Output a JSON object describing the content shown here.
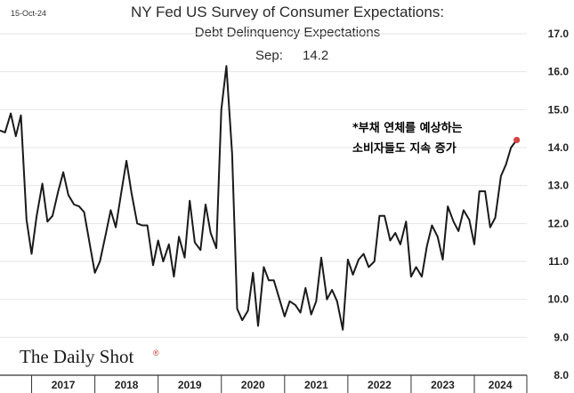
{
  "date_stamp": "15-Oct-24",
  "brand": "The Daily Shot",
  "brand_mark": "®",
  "colors": {
    "line": "#1a1a1a",
    "marker": "#d64545",
    "grid": "#e6e6e6",
    "axis": "#333333"
  },
  "chart_data": {
    "type": "line",
    "title": "NY Fed US Survey of Consumer Expectations:",
    "subtitle": "Debt Delinquency Expectations",
    "latest_label": "Sep:",
    "latest_value": "14.2",
    "annotation_lines": [
      "*부채 연체를 예상하는",
      "소비자들도  지속 증가"
    ],
    "ylim": [
      8.0,
      17.0
    ],
    "yticks": [
      "17.0",
      "16.0",
      "15.0",
      "14.0",
      "13.0",
      "12.0",
      "11.0",
      "10.0",
      "9.0",
      "8.0"
    ],
    "xlim": [
      2016.5,
      2024.83
    ],
    "year_labels": [
      "2017",
      "2018",
      "2019",
      "2020",
      "2021",
      "2022",
      "2023",
      "2024"
    ],
    "series": [
      {
        "name": "Debt delinquency expectations",
        "x": [
          2016.5,
          2016.58,
          2016.67,
          2016.75,
          2016.83,
          2016.92,
          2017.0,
          2017.08,
          2017.17,
          2017.25,
          2017.33,
          2017.42,
          2017.5,
          2017.58,
          2017.67,
          2017.75,
          2017.83,
          2017.92,
          2018.0,
          2018.08,
          2018.17,
          2018.25,
          2018.33,
          2018.42,
          2018.5,
          2018.58,
          2018.67,
          2018.75,
          2018.83,
          2018.92,
          2019.0,
          2019.08,
          2019.17,
          2019.25,
          2019.33,
          2019.42,
          2019.5,
          2019.58,
          2019.67,
          2019.75,
          2019.83,
          2019.92,
          2020.0,
          2020.08,
          2020.17,
          2020.25,
          2020.33,
          2020.42,
          2020.5,
          2020.58,
          2020.67,
          2020.75,
          2020.83,
          2020.92,
          2021.0,
          2021.08,
          2021.17,
          2021.25,
          2021.33,
          2021.42,
          2021.5,
          2021.58,
          2021.67,
          2021.75,
          2021.83,
          2021.92,
          2022.0,
          2022.08,
          2022.17,
          2022.25,
          2022.33,
          2022.42,
          2022.5,
          2022.58,
          2022.67,
          2022.75,
          2022.83,
          2022.92,
          2023.0,
          2023.08,
          2023.17,
          2023.25,
          2023.33,
          2023.42,
          2023.5,
          2023.58,
          2023.67,
          2023.75,
          2023.83,
          2023.92,
          2024.0,
          2024.08,
          2024.17,
          2024.25,
          2024.33,
          2024.42,
          2024.5,
          2024.58,
          2024.67
        ],
        "values": [
          14.45,
          14.4,
          14.9,
          14.3,
          14.85,
          12.1,
          11.2,
          12.2,
          13.05,
          12.05,
          12.2,
          12.85,
          13.35,
          12.75,
          12.5,
          12.45,
          12.3,
          11.45,
          10.7,
          11.0,
          11.7,
          12.35,
          11.9,
          12.85,
          13.65,
          12.8,
          12.0,
          11.95,
          11.95,
          10.9,
          11.55,
          11.0,
          11.45,
          10.6,
          11.65,
          11.1,
          12.6,
          11.5,
          11.3,
          12.5,
          11.75,
          11.35,
          15.0,
          16.15,
          13.85,
          9.75,
          9.45,
          9.7,
          10.7,
          9.3,
          10.85,
          10.5,
          10.5,
          10.0,
          9.55,
          9.95,
          9.85,
          9.65,
          10.3,
          9.6,
          9.95,
          11.1,
          10.0,
          10.25,
          9.95,
          9.2,
          11.05,
          10.65,
          11.05,
          11.2,
          10.85,
          11.0,
          12.2,
          12.2,
          11.55,
          11.75,
          11.45,
          12.05,
          10.6,
          10.85,
          10.6,
          11.4,
          11.95,
          11.65,
          11.05,
          12.45,
          12.05,
          11.8,
          12.35,
          12.1,
          11.45,
          12.85,
          12.85,
          11.9,
          12.15,
          13.25,
          13.55,
          14.0,
          14.2
        ]
      }
    ]
  }
}
